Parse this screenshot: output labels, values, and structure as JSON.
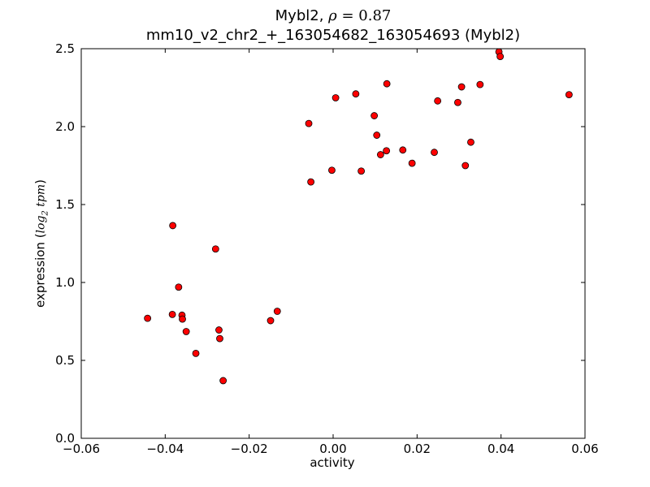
{
  "chart_data": {
    "type": "scatter",
    "title_gene": "Mybl2",
    "title_stat_symbol": "ρ",
    "title_stat_value": "0.87",
    "title_line2": "mm10_v2_chr2_+_163054682_163054693 (Mybl2)",
    "xlabel": "activity",
    "ylabel_prefix": "expression",
    "ylabel_math": "log2 tpm",
    "xlim": [
      -0.06,
      0.06
    ],
    "ylim": [
      0.0,
      2.5
    ],
    "xticks": [
      -0.06,
      -0.04,
      -0.02,
      0.0,
      0.02,
      0.04,
      0.06
    ],
    "xtick_labels": [
      "−0.06",
      "−0.04",
      "−0.02",
      "0.00",
      "0.02",
      "0.04",
      "0.06"
    ],
    "yticks": [
      0.0,
      0.5,
      1.0,
      1.5,
      2.0,
      2.5
    ],
    "ytick_labels": [
      "0.0",
      "0.5",
      "1.0",
      "1.5",
      "2.0",
      "2.5"
    ],
    "grid": false,
    "marker_color": "#ff0000",
    "marker_edge_color": "#000000",
    "points": [
      {
        "x": -0.0442,
        "y": 0.77
      },
      {
        "x": -0.0382,
        "y": 1.365
      },
      {
        "x": -0.0383,
        "y": 0.795
      },
      {
        "x": -0.0368,
        "y": 0.97
      },
      {
        "x": -0.036,
        "y": 0.79
      },
      {
        "x": -0.0359,
        "y": 0.765
      },
      {
        "x": -0.035,
        "y": 0.685
      },
      {
        "x": -0.0327,
        "y": 0.545
      },
      {
        "x": -0.028,
        "y": 1.215
      },
      {
        "x": -0.0272,
        "y": 0.695
      },
      {
        "x": -0.027,
        "y": 0.64
      },
      {
        "x": -0.0262,
        "y": 0.37
      },
      {
        "x": -0.0149,
        "y": 0.755
      },
      {
        "x": -0.0133,
        "y": 0.815
      },
      {
        "x": -0.0058,
        "y": 2.02
      },
      {
        "x": -0.0053,
        "y": 1.645
      },
      {
        "x": -0.0003,
        "y": 1.72
      },
      {
        "x": 0.0006,
        "y": 2.185
      },
      {
        "x": 0.0054,
        "y": 2.21
      },
      {
        "x": 0.0067,
        "y": 1.715
      },
      {
        "x": 0.0098,
        "y": 2.07
      },
      {
        "x": 0.0104,
        "y": 1.945
      },
      {
        "x": 0.0113,
        "y": 1.82
      },
      {
        "x": 0.0127,
        "y": 1.845
      },
      {
        "x": 0.0128,
        "y": 2.275
      },
      {
        "x": 0.0166,
        "y": 1.85
      },
      {
        "x": 0.0188,
        "y": 1.765
      },
      {
        "x": 0.0241,
        "y": 1.835
      },
      {
        "x": 0.0249,
        "y": 2.165
      },
      {
        "x": 0.0297,
        "y": 2.155
      },
      {
        "x": 0.0306,
        "y": 2.255
      },
      {
        "x": 0.0315,
        "y": 1.75
      },
      {
        "x": 0.0328,
        "y": 1.9
      },
      {
        "x": 0.035,
        "y": 2.27
      },
      {
        "x": 0.0395,
        "y": 2.48
      },
      {
        "x": 0.0398,
        "y": 2.45
      },
      {
        "x": 0.0562,
        "y": 2.205
      }
    ]
  }
}
